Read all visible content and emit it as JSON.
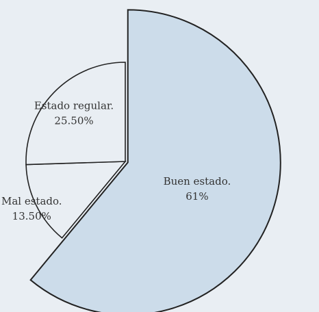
{
  "chart_data": {
    "type": "pie",
    "title": "",
    "slices": [
      {
        "label": "Buen estado.",
        "value": 61,
        "value_text": "61%",
        "color": "#ccdcea",
        "exploded": true
      },
      {
        "label": "Mal estado.",
        "value": 13.5,
        "value_text": "13.50%",
        "color": "#e9eef3",
        "exploded": false
      },
      {
        "label": "Estado regular.",
        "value": 25.5,
        "value_text": "25.50%",
        "color": "#e9eef3",
        "exploded": false
      }
    ],
    "legend": "none",
    "grid": false
  },
  "colors": {
    "background": "#e9eef3",
    "edge": "#222222"
  }
}
